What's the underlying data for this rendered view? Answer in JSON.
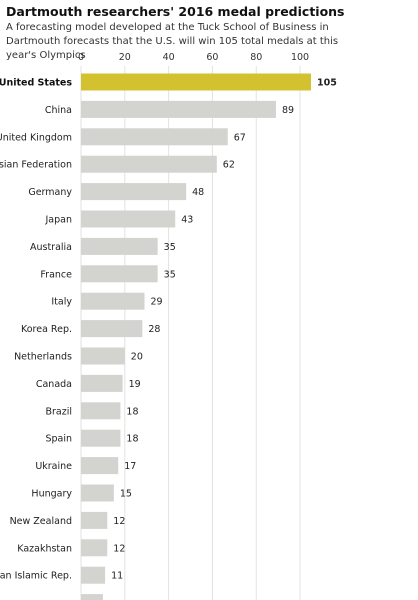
{
  "chart_data": {
    "type": "bar",
    "orientation": "horizontal",
    "title": "Dartmouth researchers' 2016 medal predictions",
    "subtitle": "A forecasting model developed at the Tuck School of Business in Dartmouth forecasts that the U.S. will win 105 total medals at this year's Olympics",
    "categories": [
      "United States",
      "China",
      "United Kingdom",
      "Russian Federation",
      "Germany",
      "Japan",
      "Australia",
      "France",
      "Italy",
      "Korea Rep.",
      "Netherlands",
      "Canada",
      "Brazil",
      "Spain",
      "Ukraine",
      "Hungary",
      "New Zealand",
      "Kazakhstan",
      "Iran Islamic Rep."
    ],
    "values": [
      105,
      89,
      67,
      62,
      48,
      43,
      35,
      35,
      29,
      28,
      20,
      19,
      18,
      18,
      17,
      15,
      12,
      12,
      11
    ],
    "highlight": "United States",
    "xticks": [
      0,
      20,
      40,
      60,
      80,
      100
    ],
    "xlim": [
      0,
      105
    ],
    "axis_position": "top",
    "grid": true,
    "colors": {
      "bar": "#d3d3cf",
      "highlight_bar": "#d4c12f"
    }
  }
}
